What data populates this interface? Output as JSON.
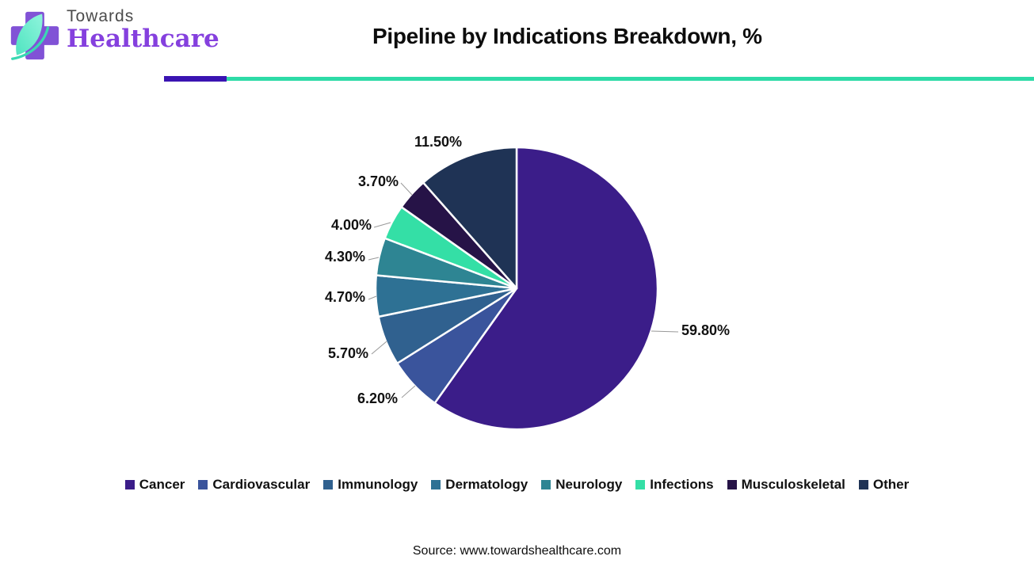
{
  "header": {
    "logo": {
      "brand_top": "Towards",
      "brand_bottom": "Healthcare"
    },
    "title": "Pipeline by Indications Breakdown, %",
    "accent_purple": "#3A14B2",
    "accent_teal": "#2EDBA7"
  },
  "chart_data": {
    "type": "pie",
    "title": "Pipeline by Indications Breakdown, %",
    "start_angle_deg": 0,
    "direction": "clockwise",
    "legend_position": "bottom",
    "series": [
      {
        "name": "Cancer",
        "value": 59.8,
        "label": "59.80%",
        "color": "#3B1D89"
      },
      {
        "name": "Cardiovascular",
        "value": 6.2,
        "label": "6.20%",
        "color": "#3A549C"
      },
      {
        "name": "Immunology",
        "value": 5.7,
        "label": "5.70%",
        "color": "#30618F"
      },
      {
        "name": "Dermatology",
        "value": 4.7,
        "label": "4.70%",
        "color": "#2E7194"
      },
      {
        "name": "Neurology",
        "value": 4.3,
        "label": "4.30%",
        "color": "#2E8593"
      },
      {
        "name": "Infections",
        "value": 4.0,
        "label": "4.00%",
        "color": "#34DFA6"
      },
      {
        "name": "Musculoskeletal",
        "value": 3.7,
        "label": "3.70%",
        "color": "#261347"
      },
      {
        "name": "Other",
        "value": 11.5,
        "label": "11.50%",
        "color": "#1F3355"
      }
    ]
  },
  "footer": {
    "source": "Source: www.towardshealthcare.com"
  }
}
